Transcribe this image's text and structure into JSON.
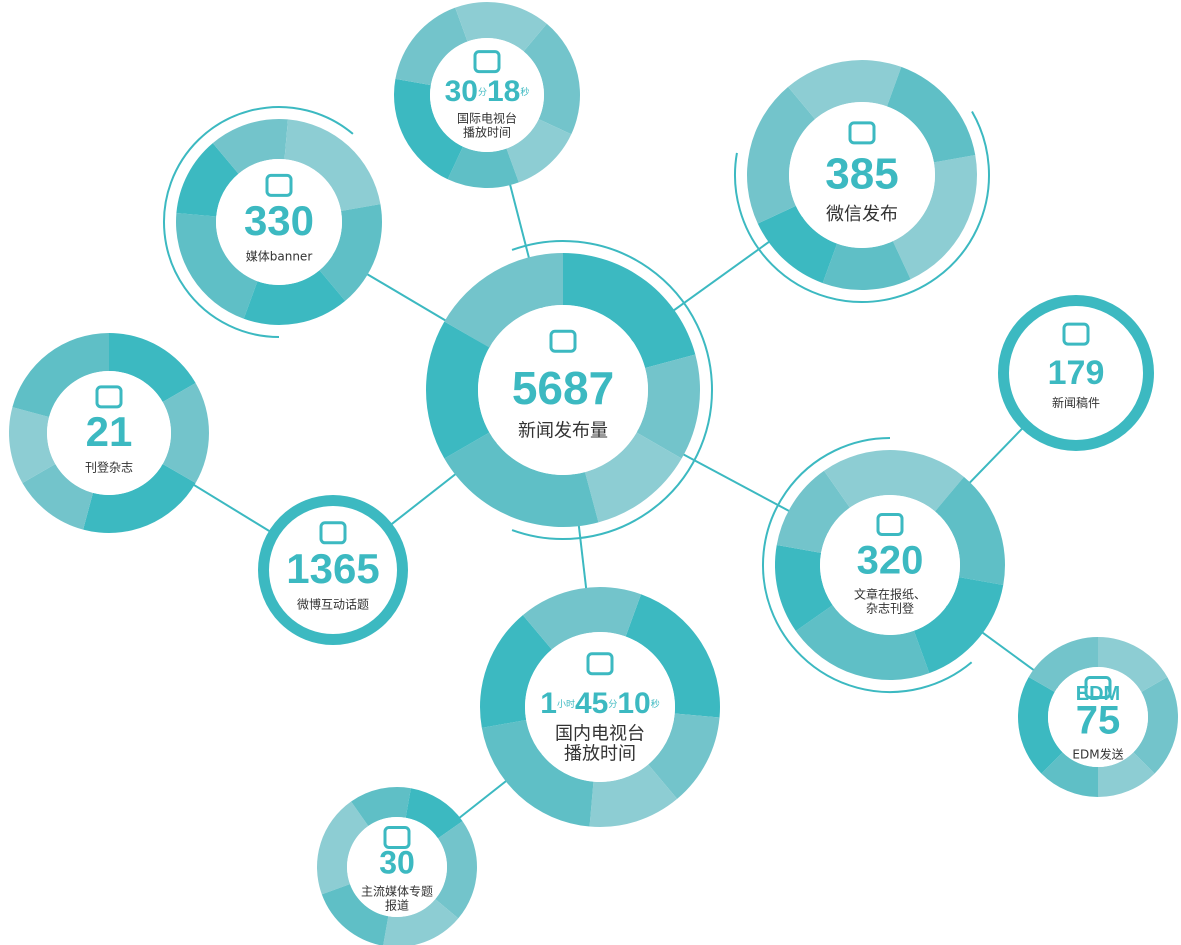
{
  "nodes": [
    {
      "value": "5687",
      "label": [
        "新闻发布量"
      ]
    },
    {
      "parts": [
        {
          "value": "30",
          "unit": "分"
        },
        {
          "value": "18",
          "unit": "秒"
        }
      ],
      "label": [
        "国际电视台",
        "播放时间"
      ]
    },
    {
      "value": "385",
      "label": [
        "微信发布"
      ]
    },
    {
      "value": "330",
      "label": [
        "媒体banner"
      ]
    },
    {
      "value": "21",
      "label": [
        "刊登杂志"
      ]
    },
    {
      "value": "1365",
      "label": [
        "微博互动话题"
      ]
    },
    {
      "value": "179",
      "label": [
        "新闻稿件"
      ]
    },
    {
      "value": "320",
      "label": [
        "文章在报纸、",
        "杂志刊登"
      ]
    },
    {
      "parts": [
        {
          "value": "1",
          "unit": "小时"
        },
        {
          "value": "45",
          "unit": "分"
        },
        {
          "value": "10",
          "unit": "秒"
        }
      ],
      "label": [
        "国内电视台",
        "播放时间"
      ]
    },
    {
      "heading": "EDM",
      "value": "75",
      "label": [
        "EDM发送"
      ]
    },
    {
      "value": "30",
      "label": [
        "主流媒体专题",
        "报道"
      ]
    }
  ]
}
